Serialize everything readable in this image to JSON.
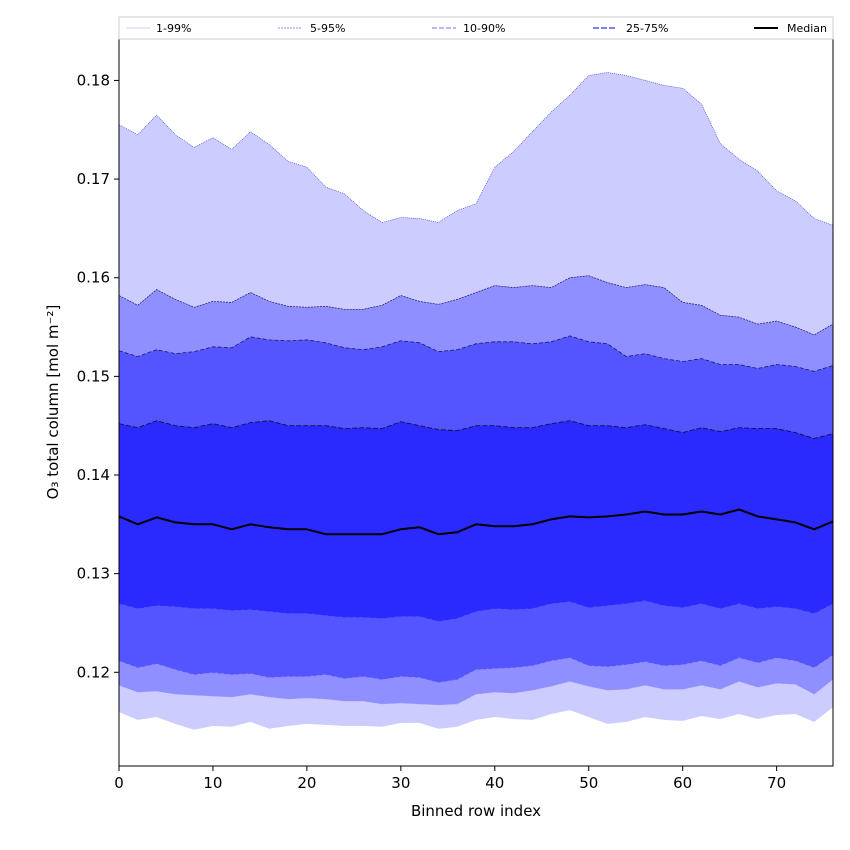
{
  "chart_data": {
    "type": "area",
    "xlabel": "Binned row index",
    "ylabel": "O₃ total column [mol m⁻²]",
    "xlim": [
      0,
      76
    ],
    "ylim": [
      0.1105,
      0.1842
    ],
    "xticks": [
      0,
      10,
      20,
      30,
      40,
      50,
      60,
      70
    ],
    "yticks": [
      0.12,
      0.13,
      0.14,
      0.15,
      0.16,
      0.17,
      0.18
    ],
    "legend_position": "top",
    "legend": [
      "1-99%",
      "5-95%",
      "10-90%",
      "25-75%",
      "Median"
    ],
    "band_colors": [
      "#ccccff",
      "#8f8fff",
      "#5555ff",
      "#2a2aff"
    ],
    "median_color": "#000000",
    "x": [
      0,
      2,
      4,
      6,
      8,
      10,
      12,
      14,
      16,
      18,
      20,
      22,
      24,
      26,
      28,
      30,
      32,
      34,
      36,
      38,
      40,
      42,
      44,
      46,
      48,
      50,
      52,
      54,
      56,
      58,
      60,
      62,
      64,
      66,
      68,
      70,
      72,
      74,
      76
    ],
    "series": [
      {
        "name": "p1",
        "values": [
          0.116,
          0.1152,
          0.1155,
          0.1148,
          0.1142,
          0.1146,
          0.1145,
          0.115,
          0.1143,
          0.1146,
          0.1148,
          0.1147,
          0.1146,
          0.1146,
          0.1145,
          0.1149,
          0.1149,
          0.1143,
          0.1145,
          0.1152,
          0.1155,
          0.1153,
          0.1152,
          0.1158,
          0.1162,
          0.1155,
          0.1148,
          0.115,
          0.1155,
          0.1152,
          0.1151,
          0.1156,
          0.1153,
          0.1158,
          0.1153,
          0.1157,
          0.1158,
          0.115,
          0.1165
        ]
      },
      {
        "name": "p99",
        "values": [
          0.1755,
          0.1745,
          0.1765,
          0.1745,
          0.1732,
          0.1742,
          0.173,
          0.1748,
          0.1735,
          0.1718,
          0.1712,
          0.1692,
          0.1685,
          0.1668,
          0.1656,
          0.1661,
          0.166,
          0.1656,
          0.1668,
          0.1675,
          0.1712,
          0.1728,
          0.1748,
          0.1768,
          0.1785,
          0.1805,
          0.1808,
          0.1805,
          0.18,
          0.1795,
          0.1792,
          0.1776,
          0.1736,
          0.172,
          0.1708,
          0.1688,
          0.1678,
          0.166,
          0.1653
        ]
      },
      {
        "name": "p5",
        "values": [
          0.1187,
          0.118,
          0.1181,
          0.1178,
          0.1177,
          0.1176,
          0.1175,
          0.1178,
          0.1175,
          0.1173,
          0.1174,
          0.1173,
          0.1171,
          0.1171,
          0.1168,
          0.1169,
          0.1168,
          0.1167,
          0.1168,
          0.1178,
          0.118,
          0.1179,
          0.1182,
          0.1186,
          0.1191,
          0.1186,
          0.1182,
          0.1183,
          0.1187,
          0.1183,
          0.1183,
          0.1187,
          0.1183,
          0.1191,
          0.1185,
          0.1189,
          0.1188,
          0.1178,
          0.1193
        ]
      },
      {
        "name": "p95",
        "values": [
          0.1582,
          0.1572,
          0.1588,
          0.1578,
          0.157,
          0.1576,
          0.1575,
          0.1585,
          0.1576,
          0.1571,
          0.157,
          0.1571,
          0.1568,
          0.1568,
          0.1572,
          0.1582,
          0.1576,
          0.1573,
          0.1578,
          0.1585,
          0.1592,
          0.159,
          0.1592,
          0.159,
          0.16,
          0.1602,
          0.1595,
          0.159,
          0.1593,
          0.159,
          0.1575,
          0.1572,
          0.1562,
          0.156,
          0.1553,
          0.1556,
          0.155,
          0.1542,
          0.1553
        ]
      },
      {
        "name": "p10",
        "values": [
          0.1212,
          0.1205,
          0.1209,
          0.1203,
          0.1198,
          0.12,
          0.1198,
          0.1199,
          0.1195,
          0.1196,
          0.1196,
          0.1198,
          0.1194,
          0.1196,
          0.1193,
          0.1196,
          0.1195,
          0.119,
          0.1193,
          0.1203,
          0.1204,
          0.1205,
          0.1207,
          0.1212,
          0.1215,
          0.1207,
          0.1206,
          0.1208,
          0.1211,
          0.1207,
          0.1208,
          0.1212,
          0.1207,
          0.1215,
          0.121,
          0.1215,
          0.1212,
          0.1205,
          0.1218
        ]
      },
      {
        "name": "p90",
        "values": [
          0.1526,
          0.152,
          0.1527,
          0.1523,
          0.1525,
          0.153,
          0.1529,
          0.154,
          0.1537,
          0.1536,
          0.1537,
          0.1534,
          0.1529,
          0.1527,
          0.153,
          0.1536,
          0.1534,
          0.1525,
          0.1527,
          0.1533,
          0.1535,
          0.1535,
          0.1533,
          0.1535,
          0.1541,
          0.1535,
          0.1533,
          0.152,
          0.1523,
          0.1518,
          0.1515,
          0.1518,
          0.1512,
          0.1512,
          0.1508,
          0.1512,
          0.151,
          0.1505,
          0.1511
        ]
      },
      {
        "name": "p25",
        "values": [
          0.127,
          0.1265,
          0.1268,
          0.1267,
          0.1265,
          0.1265,
          0.1263,
          0.1264,
          0.1262,
          0.126,
          0.126,
          0.1258,
          0.1256,
          0.1256,
          0.1255,
          0.1257,
          0.1257,
          0.1252,
          0.1255,
          0.1262,
          0.1265,
          0.1264,
          0.1265,
          0.127,
          0.1272,
          0.1266,
          0.1268,
          0.127,
          0.1273,
          0.1268,
          0.1266,
          0.127,
          0.1265,
          0.127,
          0.1265,
          0.1267,
          0.1265,
          0.126,
          0.127
        ]
      },
      {
        "name": "p75",
        "values": [
          0.1452,
          0.1448,
          0.1455,
          0.145,
          0.1448,
          0.1452,
          0.1448,
          0.1453,
          0.1455,
          0.145,
          0.145,
          0.145,
          0.1447,
          0.1448,
          0.1447,
          0.1454,
          0.145,
          0.1446,
          0.1445,
          0.145,
          0.145,
          0.1448,
          0.1448,
          0.1452,
          0.1455,
          0.145,
          0.145,
          0.1448,
          0.1451,
          0.1447,
          0.1443,
          0.1448,
          0.1444,
          0.1448,
          0.1447,
          0.1447,
          0.1443,
          0.1437,
          0.1442
        ]
      },
      {
        "name": "Median",
        "values": [
          0.1358,
          0.135,
          0.1357,
          0.1352,
          0.135,
          0.135,
          0.1345,
          0.135,
          0.1347,
          0.1345,
          0.1345,
          0.134,
          0.134,
          0.134,
          0.134,
          0.1345,
          0.1347,
          0.134,
          0.1342,
          0.135,
          0.1348,
          0.1348,
          0.135,
          0.1355,
          0.1358,
          0.1357,
          0.1358,
          0.136,
          0.1363,
          0.136,
          0.136,
          0.1363,
          0.136,
          0.1365,
          0.1358,
          0.1355,
          0.1352,
          0.1345,
          0.1353
        ]
      }
    ]
  }
}
